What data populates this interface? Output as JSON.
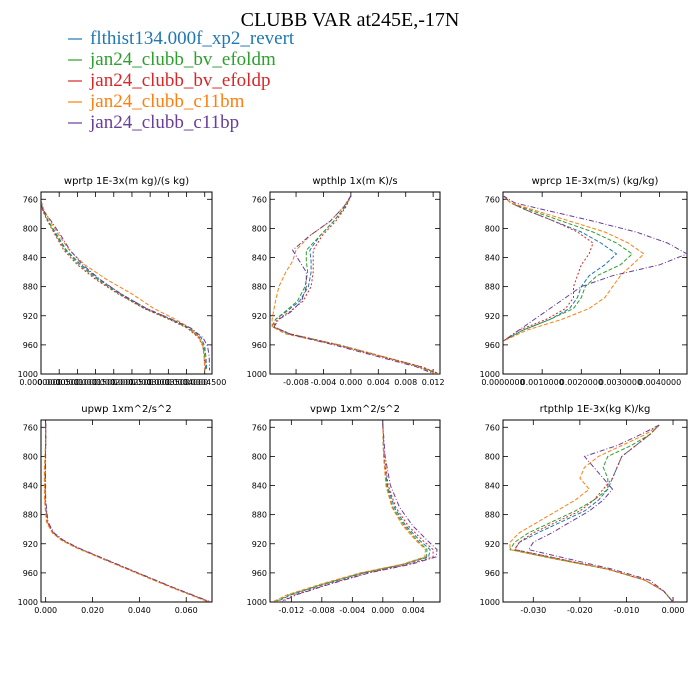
{
  "figure": {
    "title": "CLUBB VAR at245E,-17N"
  },
  "legend": [
    {
      "label": "flthist134.000f_xp2_revert",
      "color": "#1f77b4",
      "dash": "solid"
    },
    {
      "label": "jan24_clubb_bv_efoldm",
      "color": "#2ca02c",
      "dash": "solid"
    },
    {
      "label": "jan24_clubb_bv_efoldp",
      "color": "#d62728",
      "dash": "solid"
    },
    {
      "label": "jan24_clubb_c11bm",
      "color": "#ff7f0e",
      "dash": "solid"
    },
    {
      "label": "jan24_clubb_c11bp",
      "color": "#6a3d9a",
      "dash": "solid"
    }
  ],
  "chart_data": [
    {
      "type": "line",
      "title": "wprtp  1E-3x(m kg)/(s kg)",
      "ylim": [
        1000,
        750
      ],
      "xlim": [
        0.0,
        0.00047
      ],
      "xticks": [
        0.0,
        5e-05,
        0.0001,
        0.00015,
        0.0002,
        0.00025,
        0.0003,
        0.00035,
        0.0004,
        0.00045
      ],
      "xtick_labels": [
        "0.0000000",
        "0.0000500",
        "0.0001000",
        "0.0001500",
        "0.0002000",
        "0.0002500",
        "0.0003000",
        "0.0003500",
        "0.0004000",
        "0.0004500"
      ],
      "yticks": [
        760,
        800,
        840,
        880,
        920,
        960,
        1000
      ],
      "y": [
        762,
        775,
        790,
        810,
        830,
        850,
        870,
        890,
        910,
        925,
        937,
        950,
        962,
        975,
        988,
        995
      ],
      "series": [
        {
          "values": [
            0,
            5e-06,
            2e-05,
            4.5e-05,
            7e-05,
            0.00011,
            0.00016,
            0.00022,
            0.00029,
            0.00036,
            0.00041,
            0.00044,
            0.00045,
            0.000453,
            0.000455,
            0.000455
          ]
        },
        {
          "values": [
            0,
            5e-06,
            2e-05,
            4.2e-05,
            6.7e-05,
            0.000105,
            0.000155,
            0.000215,
            0.000285,
            0.000355,
            0.000405,
            0.000435,
            0.000447,
            0.00045,
            0.000452,
            0.000452
          ]
        },
        {
          "values": [
            0,
            4e-06,
            1.8e-05,
            4e-05,
            6.3e-05,
            0.0001,
            0.00015,
            0.000212,
            0.000283,
            0.000352,
            0.000402,
            0.000433,
            0.000445,
            0.000448,
            0.00045,
            0.00045
          ]
        },
        {
          "values": [
            0,
            8e-06,
            2.5e-05,
            5e-05,
            7.8e-05,
            0.00012,
            0.00018,
            0.00025,
            0.00031,
            0.00037,
            0.00041,
            0.000435,
            0.000445,
            0.000448,
            0.00045,
            0.00045
          ]
        },
        {
          "values": [
            0,
            6e-06,
            2.8e-05,
            5.5e-05,
            8e-05,
            0.000115,
            0.000162,
            0.00022,
            0.00029,
            0.00036,
            0.000412,
            0.000445,
            0.000458,
            0.000462,
            0.000463,
            0.000463
          ]
        }
      ]
    },
    {
      "type": "line",
      "title": "wpthlp  1x(m K)/s",
      "ylim": [
        1000,
        750
      ],
      "xlim": [
        -0.0118,
        0.013
      ],
      "xticks": [
        -0.008,
        -0.004,
        0.0,
        0.004,
        0.008,
        0.012
      ],
      "xtick_labels": [
        "-0.008",
        "-0.004",
        "0.000",
        "0.004",
        "0.008",
        "0.012"
      ],
      "yticks": [
        760,
        800,
        840,
        880,
        920,
        960,
        1000
      ],
      "y": [
        755,
        770,
        790,
        810,
        830,
        845,
        860,
        880,
        900,
        915,
        925,
        935,
        945,
        960,
        975,
        990,
        1000
      ],
      "series": [
        {
          "values": [
            0.0,
            -0.0008,
            -0.0025,
            -0.0045,
            -0.006,
            -0.0058,
            -0.0058,
            -0.0062,
            -0.0075,
            -0.0095,
            -0.011,
            -0.0115,
            -0.009,
            -0.002,
            0.004,
            0.01,
            0.0128
          ]
        },
        {
          "values": [
            0.0,
            -0.0008,
            -0.0025,
            -0.0045,
            -0.0065,
            -0.0065,
            -0.0063,
            -0.0067,
            -0.0078,
            -0.0097,
            -0.011,
            -0.0115,
            -0.0088,
            -0.0018,
            0.0042,
            0.0102,
            0.0128
          ]
        },
        {
          "values": [
            0.0,
            -0.0007,
            -0.0022,
            -0.0042,
            -0.0055,
            -0.0055,
            -0.0055,
            -0.0058,
            -0.007,
            -0.009,
            -0.0107,
            -0.0113,
            -0.0088,
            -0.0017,
            0.0043,
            0.0103,
            0.013
          ]
        },
        {
          "values": [
            0.0,
            -0.001,
            -0.003,
            -0.006,
            -0.008,
            -0.0085,
            -0.0095,
            -0.0105,
            -0.011,
            -0.0113,
            -0.0115,
            -0.0115,
            -0.0095,
            -0.0022,
            0.004,
            0.0098,
            0.0125
          ]
        },
        {
          "values": [
            0.0,
            -0.001,
            -0.003,
            -0.006,
            -0.0085,
            -0.0075,
            -0.0065,
            -0.0065,
            -0.0072,
            -0.0088,
            -0.0105,
            -0.0112,
            -0.009,
            -0.0025,
            0.0035,
            0.0095,
            0.0122
          ]
        }
      ]
    },
    {
      "type": "line",
      "title": "wprcp  1E-3x(m/s) (kg/kg)",
      "ylim": [
        1000,
        750
      ],
      "xlim": [
        0.0,
        0.0047
      ],
      "xticks": [
        0.0,
        0.001,
        0.002,
        0.003,
        0.004
      ],
      "xtick_labels": [
        "0.0000000",
        "0.0010000",
        "0.0020000",
        "0.0030000",
        "0.0040000"
      ],
      "yticks": [
        760,
        800,
        840,
        880,
        920,
        960,
        1000
      ],
      "y": [
        755,
        765,
        775,
        790,
        805,
        820,
        835,
        850,
        865,
        880,
        895,
        910,
        925,
        940,
        955
      ],
      "series": [
        {
          "values": [
            0.0,
            0.0002,
            0.0006,
            0.0013,
            0.002,
            0.0025,
            0.0029,
            0.0026,
            0.0022,
            0.002,
            0.0019,
            0.0017,
            0.0012,
            0.0005,
            0.0
          ]
        },
        {
          "values": [
            0.0,
            0.0002,
            0.0007,
            0.0015,
            0.0023,
            0.0029,
            0.0033,
            0.003,
            0.0024,
            0.0021,
            0.002,
            0.0018,
            0.0012,
            0.0005,
            0.0
          ]
        },
        {
          "values": [
            0.0,
            0.0002,
            0.0006,
            0.0013,
            0.0019,
            0.0023,
            0.0022,
            0.002,
            0.0019,
            0.0018,
            0.0018,
            0.0016,
            0.0011,
            0.0004,
            0.0
          ]
        },
        {
          "values": [
            0.0,
            0.0002,
            0.0008,
            0.0017,
            0.0026,
            0.0032,
            0.0036,
            0.0033,
            0.003,
            0.0028,
            0.0026,
            0.0022,
            0.0015,
            0.0006,
            0.0
          ]
        },
        {
          "values": [
            0.0,
            0.0003,
            0.0011,
            0.0023,
            0.0034,
            0.0042,
            0.0047,
            0.004,
            0.0028,
            0.002,
            0.0016,
            0.0012,
            0.0008,
            0.0004,
            0.0
          ]
        }
      ]
    },
    {
      "type": "line",
      "title": "upwp  1xm^2/s^2",
      "ylim": [
        1000,
        750
      ],
      "xlim": [
        -0.002,
        0.071
      ],
      "xticks": [
        0.0,
        0.02,
        0.04,
        0.06
      ],
      "xtick_labels": [
        "0.000",
        "0.020",
        "0.040",
        "0.060"
      ],
      "yticks": [
        760,
        800,
        840,
        880,
        920,
        960,
        1000
      ],
      "y": [
        755,
        780,
        820,
        860,
        890,
        905,
        915,
        925,
        940,
        960,
        980,
        995,
        1000
      ],
      "series": [
        {
          "values": [
            0.0,
            0.0,
            -0.0003,
            -0.0003,
            0.0005,
            0.003,
            0.007,
            0.013,
            0.024,
            0.039,
            0.054,
            0.066,
            0.07
          ]
        },
        {
          "values": [
            0.0,
            0.0,
            -0.0005,
            -0.0004,
            0.0004,
            0.003,
            0.0068,
            0.0128,
            0.0238,
            0.0388,
            0.0538,
            0.0658,
            0.0698
          ]
        },
        {
          "values": [
            0.0,
            0.0,
            -0.0002,
            -0.0002,
            0.0007,
            0.0032,
            0.0072,
            0.0132,
            0.0242,
            0.0392,
            0.0542,
            0.0662,
            0.0702
          ]
        },
        {
          "values": [
            0.0,
            0.0,
            -0.0006,
            -0.0005,
            0.0003,
            0.0028,
            0.0066,
            0.0126,
            0.0236,
            0.0385,
            0.0535,
            0.0655,
            0.0695
          ]
        },
        {
          "values": [
            0.0,
            0.0,
            -0.0001,
            0.0,
            0.001,
            0.0035,
            0.0075,
            0.0135,
            0.0245,
            0.0395,
            0.0545,
            0.0665,
            0.0705
          ]
        }
      ]
    },
    {
      "type": "line",
      "title": "vpwp  1xm^2/s^2",
      "ylim": [
        1000,
        750
      ],
      "xlim": [
        -0.0148,
        0.0075
      ],
      "xticks": [
        -0.012,
        -0.008,
        -0.004,
        0.0,
        0.004
      ],
      "xtick_labels": [
        "-0.012",
        "-0.008",
        "-0.004",
        "0.000",
        "0.004"
      ],
      "yticks": [
        760,
        800,
        840,
        880,
        920,
        960,
        1000
      ],
      "y": [
        755,
        800,
        840,
        870,
        895,
        915,
        928,
        938,
        948,
        960,
        975,
        990,
        1000
      ],
      "series": [
        {
          "values": [
            0.0,
            0.0001,
            0.0006,
            0.0015,
            0.003,
            0.0048,
            0.0062,
            0.006,
            0.003,
            -0.0025,
            -0.0075,
            -0.012,
            -0.014
          ]
        },
        {
          "values": [
            0.0,
            0.0001,
            0.0005,
            0.0013,
            0.0028,
            0.0045,
            0.0058,
            0.0057,
            0.0028,
            -0.0027,
            -0.0077,
            -0.0122,
            -0.0142
          ]
        },
        {
          "values": [
            0.0,
            0.0002,
            0.0007,
            0.0017,
            0.0033,
            0.0052,
            0.0066,
            0.0066,
            0.0035,
            -0.002,
            -0.007,
            -0.0115,
            -0.0135
          ]
        },
        {
          "values": [
            0.0,
            0.0001,
            0.0004,
            0.0012,
            0.0026,
            0.0043,
            0.0056,
            0.0055,
            0.0026,
            -0.003,
            -0.008,
            -0.0125,
            -0.0145
          ]
        },
        {
          "values": [
            0.0,
            0.0003,
            0.001,
            0.0022,
            0.0039,
            0.0058,
            0.0071,
            0.007,
            0.0038,
            -0.0018,
            -0.0068,
            -0.0113,
            -0.0133
          ]
        }
      ]
    },
    {
      "type": "line",
      "title": "rtpthlp  1E-3x(kg K)/kg",
      "ylim": [
        1000,
        750
      ],
      "xlim": [
        -0.0365,
        0.003
      ],
      "xticks": [
        -0.03,
        -0.02,
        -0.01,
        0.0
      ],
      "xtick_labels": [
        "-0.030",
        "-0.020",
        "-0.010",
        "0.000"
      ],
      "yticks": [
        760,
        800,
        840,
        880,
        920,
        960,
        1000
      ],
      "y": [
        757,
        770,
        785,
        800,
        815,
        830,
        845,
        860,
        875,
        890,
        905,
        918,
        928,
        940,
        955,
        970,
        985,
        1000
      ],
      "series": [
        {
          "values": [
            -0.003,
            -0.005,
            -0.008,
            -0.011,
            -0.012,
            -0.013,
            -0.014,
            -0.016,
            -0.019,
            -0.024,
            -0.029,
            -0.033,
            -0.034,
            -0.025,
            -0.014,
            -0.006,
            -0.002,
            0.0
          ]
        },
        {
          "values": [
            -0.003,
            -0.005,
            -0.009,
            -0.014,
            -0.015,
            -0.014,
            -0.014,
            -0.017,
            -0.021,
            -0.026,
            -0.031,
            -0.034,
            -0.035,
            -0.026,
            -0.014,
            -0.006,
            -0.002,
            0.0
          ]
        },
        {
          "values": [
            -0.003,
            -0.005,
            -0.008,
            -0.011,
            -0.012,
            -0.013,
            -0.015,
            -0.017,
            -0.02,
            -0.025,
            -0.03,
            -0.033,
            -0.034,
            -0.025,
            -0.014,
            -0.006,
            -0.002,
            0.0
          ]
        },
        {
          "values": [
            -0.003,
            -0.006,
            -0.011,
            -0.016,
            -0.019,
            -0.02,
            -0.018,
            -0.021,
            -0.025,
            -0.029,
            -0.033,
            -0.035,
            -0.035,
            -0.026,
            -0.014,
            -0.006,
            -0.002,
            0.0
          ]
        },
        {
          "values": [
            -0.003,
            -0.007,
            -0.012,
            -0.019,
            -0.017,
            -0.015,
            -0.013,
            -0.015,
            -0.018,
            -0.022,
            -0.026,
            -0.03,
            -0.031,
            -0.023,
            -0.013,
            -0.005,
            -0.002,
            0.0
          ]
        }
      ]
    }
  ]
}
